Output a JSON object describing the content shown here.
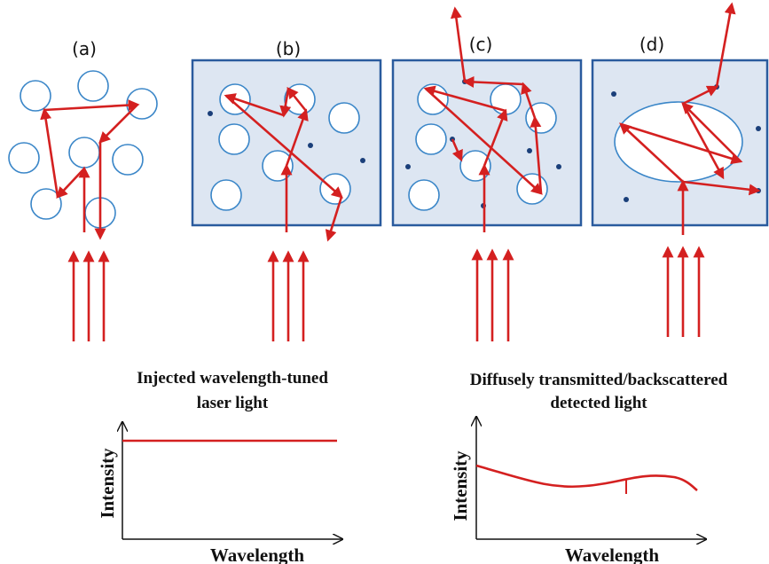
{
  "panels": [
    {
      "label": "(a)"
    },
    {
      "label": "(b)"
    },
    {
      "label": "(c)"
    },
    {
      "label": "(d)"
    }
  ],
  "plots": [
    {
      "title": [
        "Injected wavelength-tuned",
        "laser light"
      ],
      "y_label": "Intensity",
      "x_label": "Wavelength"
    },
    {
      "title": [
        "Diffusely transmitted/backscattered",
        "detected  light"
      ],
      "y_label": "Intensity",
      "x_label": "Wavelength"
    }
  ]
}
